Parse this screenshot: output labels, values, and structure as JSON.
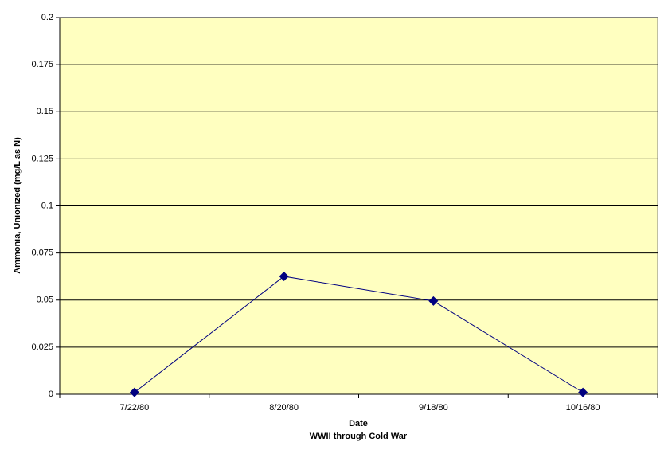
{
  "chart_data": {
    "type": "line",
    "ylabel": "Ammonia, Unionized (mg/L as N)",
    "xlabel_lines": [
      "Date",
      "WWII through Cold War"
    ],
    "categories": [
      "7/22/80",
      "8/20/80",
      "9/18/80",
      "10/16/80"
    ],
    "series": [
      {
        "color": "#000080",
        "values": [
          0.001,
          0.0626,
          0.0495,
          0.001
        ]
      }
    ],
    "ylim": [
      0,
      0.2
    ],
    "yticks": [
      0,
      0.025,
      0.05,
      0.075,
      0.1,
      0.125,
      0.15,
      0.175,
      0.2
    ],
    "grid": true,
    "plot_background": "#ffffc0"
  }
}
